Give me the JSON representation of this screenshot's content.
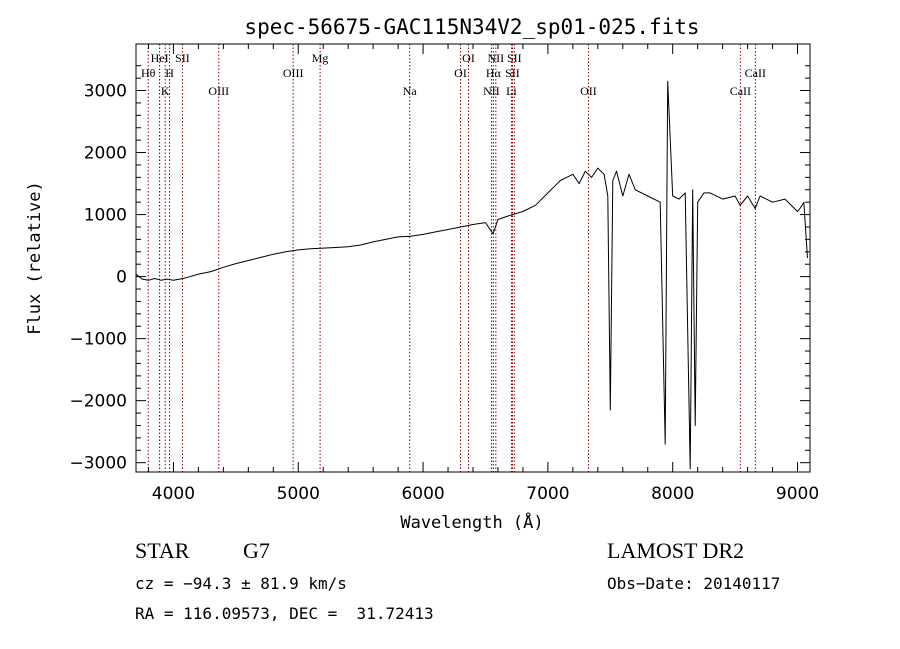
{
  "chart_data": {
    "type": "line",
    "title": "spec-56675-GAC115N34V2_sp01-025.fits",
    "xlabel": "Wavelength (Å)",
    "ylabel": "Flux (relative)",
    "xlim": [
      3700,
      9100
    ],
    "ylim": [
      -3150,
      3750
    ],
    "x_ticks": [
      4000,
      5000,
      6000,
      7000,
      8000,
      9000
    ],
    "y_ticks": [
      -3000,
      -2000,
      -1000,
      0,
      1000,
      2000,
      3000
    ],
    "grid": false,
    "line_color": "#000000",
    "marker_color": "#8b0000",
    "series": [
      {
        "x": [
          3700,
          3750,
          3800,
          3850,
          3900,
          3950,
          4000,
          4050,
          4100,
          4200,
          4300,
          4400,
          4500,
          4600,
          4700,
          4800,
          4900,
          5000,
          5100,
          5200,
          5300,
          5400,
          5500,
          5600,
          5700,
          5800,
          5900,
          6000,
          6100,
          6200,
          6300,
          6400,
          6500,
          6560,
          6600,
          6700,
          6800,
          6900,
          7000,
          7050,
          7100,
          7150,
          7200,
          7250,
          7300,
          7350,
          7400,
          7450,
          7480,
          7500,
          7520,
          7550,
          7600,
          7650,
          7700,
          7800,
          7900,
          7940,
          7960,
          8000,
          8050,
          8100,
          8140,
          8160,
          8180,
          8200,
          8250,
          8300,
          8400,
          8500,
          8540,
          8600,
          8660,
          8700,
          8800,
          8900,
          9000,
          9020,
          9050,
          9080
        ],
        "y": [
          40,
          -40,
          -60,
          -30,
          -60,
          -40,
          -60,
          -40,
          -20,
          40,
          80,
          150,
          210,
          260,
          310,
          360,
          400,
          430,
          450,
          460,
          470,
          480,
          510,
          560,
          600,
          640,
          650,
          680,
          720,
          760,
          800,
          840,
          870,
          690,
          920,
          990,
          1050,
          1150,
          1350,
          1450,
          1550,
          1600,
          1650,
          1500,
          1700,
          1600,
          1750,
          1650,
          1300,
          -2150,
          1550,
          1700,
          1300,
          1650,
          1400,
          1300,
          1200,
          -2700,
          3150,
          1300,
          1250,
          1350,
          -3100,
          1400,
          -2400,
          1200,
          1350,
          1350,
          1250,
          1300,
          1150,
          1300,
          1100,
          1300,
          1200,
          1250,
          1050,
          1100,
          1200,
          300
        ]
      }
    ],
    "markers": [
      {
        "label": "Hθ",
        "x": 3798,
        "row": 2
      },
      {
        "label": "HeI",
        "x": 3889,
        "row": 1
      },
      {
        "label": "K",
        "x": 3934,
        "row": 3
      },
      {
        "label": "SII",
        "x": 4072,
        "row": 1
      },
      {
        "label": "H",
        "x": 3969,
        "row": 2
      },
      {
        "label": "OIII",
        "x": 4363,
        "row": 3
      },
      {
        "label": "OIII",
        "x": 4959,
        "row": 2
      },
      {
        "label": "Mg",
        "x": 5175,
        "row": 1
      },
      {
        "label": "Na",
        "x": 5893,
        "row": 3
      },
      {
        "label": "OI",
        "x": 6300,
        "row": 2
      },
      {
        "label": "OI",
        "x": 6364,
        "row": 1
      },
      {
        "label": "NII",
        "x": 6548,
        "row": 3
      },
      {
        "label": "NII",
        "x": 6583,
        "row": 1
      },
      {
        "label": "Hα",
        "x": 6563,
        "row": 2
      },
      {
        "label": "SII",
        "x": 6716,
        "row": 2
      },
      {
        "label": "SII",
        "x": 6731,
        "row": 1
      },
      {
        "label": "Li",
        "x": 6708,
        "row": 3
      },
      {
        "label": "OII",
        "x": 7325,
        "row": 3
      },
      {
        "label": "CaII",
        "x": 8542,
        "row": 3
      },
      {
        "label": "CaII",
        "x": 8662,
        "row": 2
      }
    ]
  },
  "info": {
    "object_type": "STAR",
    "subclass": "G7",
    "survey": "LAMOST DR2",
    "cz": "cz = −94.3 ± 81.9 km/s",
    "obs_date": "Obs−Date: 20140117",
    "coords": "RA = 116.09573, DEC =  31.72413"
  }
}
